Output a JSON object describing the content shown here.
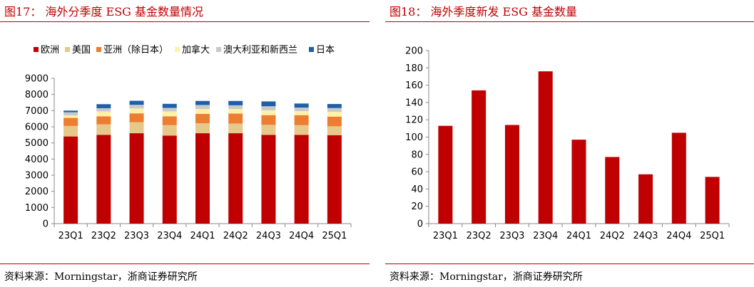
{
  "figures": [
    {
      "title": "图17： 海外分季度 ESG 基金数量情况",
      "source": "资料来源：Morningstar，浙商证券研究所"
    },
    {
      "title": "图18： 海外季度新发 ESG 基金数量",
      "source": "资料来源：Morningstar，浙商证券研究所"
    }
  ],
  "chart_data": [
    {
      "type": "bar",
      "stacked": true,
      "categories": [
        "23Q1",
        "23Q2",
        "23Q3",
        "23Q4",
        "24Q1",
        "24Q2",
        "24Q3",
        "24Q4",
        "25Q1"
      ],
      "ylim": [
        0,
        9000
      ],
      "yticks": [
        "0",
        "1000",
        "2000",
        "3000",
        "4000",
        "5000",
        "6000",
        "7000",
        "8000",
        "9000"
      ],
      "grid": false,
      "legend": "top",
      "series": [
        {
          "name": "欧洲",
          "color": "#c00000",
          "values": [
            5400,
            5500,
            5600,
            5450,
            5600,
            5600,
            5500,
            5500,
            5480
          ]
        },
        {
          "name": "美国",
          "color": "#e6c88a",
          "values": [
            650,
            650,
            680,
            650,
            620,
            600,
            620,
            600,
            550
          ]
        },
        {
          "name": "亚洲（除日本）",
          "color": "#ed7d31",
          "values": [
            500,
            500,
            550,
            550,
            580,
            620,
            600,
            620,
            600
          ]
        },
        {
          "name": "加拿大",
          "color": "#fff2a8",
          "values": [
            150,
            300,
            300,
            300,
            300,
            280,
            300,
            250,
            300
          ]
        },
        {
          "name": "澳大利亚和新西兰",
          "color": "#c9c9c9",
          "values": [
            200,
            200,
            230,
            220,
            250,
            230,
            250,
            220,
            230
          ]
        },
        {
          "name": "日本",
          "color": "#1f5fa8",
          "values": [
            100,
            250,
            250,
            250,
            250,
            270,
            300,
            250,
            250
          ]
        }
      ]
    },
    {
      "type": "bar",
      "categories": [
        "23Q1",
        "23Q2",
        "23Q3",
        "23Q4",
        "24Q1",
        "24Q2",
        "24Q3",
        "24Q4",
        "25Q1"
      ],
      "values": [
        113,
        154,
        114,
        176,
        97,
        77,
        57,
        105,
        54
      ],
      "ylim": [
        0,
        200
      ],
      "yticks": [
        "0",
        "20",
        "40",
        "60",
        "80",
        "100",
        "120",
        "140",
        "160",
        "180",
        "200"
      ],
      "color": "#c00000",
      "grid": false
    }
  ]
}
